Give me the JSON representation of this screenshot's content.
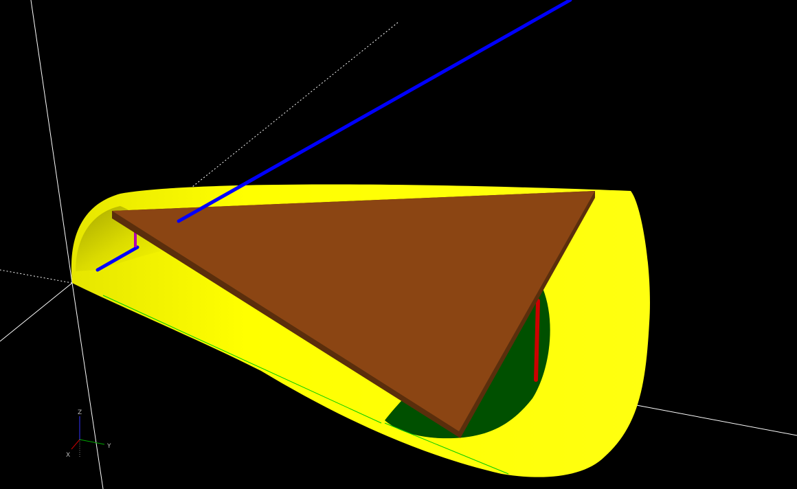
{
  "viewport": {
    "background": "#000000",
    "colors": {
      "shell_outer": "#FFFF00",
      "shell_inner_shadow": "#C8C800",
      "shell_floor": "#005000",
      "plate_top": "#8B4513",
      "plate_edge": "#5A2E0C",
      "rod_blue": "#0000FF",
      "rod_red": "#CC0000",
      "rod_magenta": "#B000B0",
      "axis_lines": "#FFFFFF",
      "edge_green": "#00CC00"
    },
    "axes_indicator": {
      "z_label": "Z",
      "y_label": "Y",
      "x_label": "X",
      "x_color": "#CC0000",
      "y_color": "#00AA00",
      "z_color": "#3333FF"
    }
  }
}
